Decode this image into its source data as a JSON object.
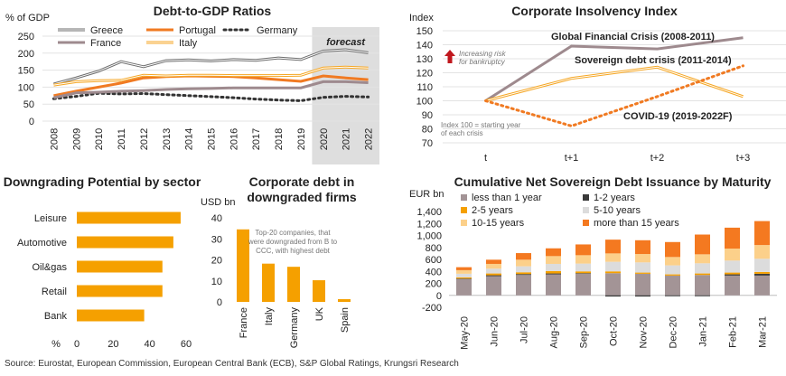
{
  "chart_data": [
    {
      "type": "line",
      "title": "Debt-to-GDP Ratios",
      "ylabel": "% of GDP",
      "xlabel": "",
      "x": [
        "2008",
        "2009",
        "2010",
        "2011",
        "2012",
        "2013",
        "2014",
        "2015",
        "2016",
        "2017",
        "2018",
        "2019",
        "2020",
        "2021",
        "2022"
      ],
      "ylim": [
        0,
        250
      ],
      "yticks": [
        0,
        50,
        100,
        150,
        200,
        250
      ],
      "shade_label": "forecast",
      "shade_from": "2020",
      "series": [
        {
          "name": "Greece",
          "color": "#6d6d6d",
          "style": "double",
          "values": [
            109,
            127,
            147,
            175,
            160,
            178,
            180,
            177,
            181,
            179,
            186,
            181,
            206,
            210,
            201
          ]
        },
        {
          "name": "Portugal",
          "color": "#f07a22",
          "style": "solid",
          "values": [
            75,
            88,
            100,
            112,
            127,
            131,
            133,
            132,
            131,
            127,
            122,
            117,
            133,
            127,
            122
          ]
        },
        {
          "name": "Germany",
          "color": "#333333",
          "style": "dotted",
          "values": [
            66,
            73,
            82,
            80,
            81,
            78,
            75,
            72,
            69,
            65,
            62,
            60,
            70,
            73,
            71
          ]
        },
        {
          "name": "France",
          "color": "#9e8a8e",
          "style": "solid",
          "values": [
            69,
            83,
            85,
            88,
            90,
            93,
            95,
            96,
            98,
            98,
            98,
            98,
            116,
            116,
            113
          ]
        },
        {
          "name": "Italy",
          "color": "#f5a623",
          "style": "double",
          "values": [
            106,
            116,
            119,
            120,
            135,
            133,
            135,
            135,
            134,
            134,
            134,
            135,
            156,
            159,
            156
          ]
        }
      ]
    },
    {
      "type": "line",
      "title": "Corporate Insolvency Index",
      "ylabel": "Index",
      "x": [
        "t",
        "t+1",
        "t+2",
        "t+3"
      ],
      "ylim": [
        70,
        150
      ],
      "yticks": [
        70,
        80,
        90,
        100,
        110,
        120,
        130,
        140,
        150
      ],
      "note_risk": [
        "Increasing risk",
        "for bankruptcy"
      ],
      "note_index": [
        "Index 100 = starting year",
        "of each crisis"
      ],
      "series": [
        {
          "name": "Global Financial Crisis (2008-2011)",
          "color": "#9e8a8e",
          "style": "solid",
          "values": [
            100,
            139,
            137,
            145
          ]
        },
        {
          "name": "Sovereign debt crisis (2011-2014)",
          "color": "#f5a623",
          "style": "double",
          "values": [
            100,
            116,
            124,
            103
          ]
        },
        {
          "name": "COVID-19 (2019-2022F)",
          "color": "#f07a22",
          "style": "dotted",
          "values": [
            100,
            82,
            103,
            125
          ]
        }
      ]
    },
    {
      "type": "bar",
      "orientation": "horizontal",
      "title": "Downgrading Potential by sector",
      "categories": [
        "Leisure",
        "Automotive",
        "Oil&gas",
        "Retail",
        "Bank"
      ],
      "values": [
        57,
        53,
        47,
        47,
        37
      ],
      "xlim": [
        0,
        60
      ],
      "xticks": [
        0,
        20,
        40,
        60
      ],
      "xunit": "%",
      "color": "#f5a000"
    },
    {
      "type": "bar",
      "title_lines": [
        "Corporate debt in",
        "downgraded firms"
      ],
      "ylabel": "USD bn",
      "categories": [
        "France",
        "Italy",
        "Germany",
        "UK",
        "Spain"
      ],
      "values": [
        34.5,
        18.2,
        16.7,
        10.3,
        1.3
      ],
      "ylim": [
        0,
        40
      ],
      "yticks": [
        0,
        10,
        20,
        30,
        40
      ],
      "note": [
        "Top-20 companies, that",
        "were downgraded from B to",
        "CCC, with highest debt"
      ],
      "color": "#f5a000"
    },
    {
      "type": "bar",
      "stacked": true,
      "title": "Cumulative Net Sovereign Debt Issuance by Maturity",
      "ylabel": "EUR bn",
      "categories": [
        "May-20",
        "Jun-20",
        "Jul-20",
        "Aug-20",
        "Sep-20",
        "Oct-20",
        "Nov-20",
        "Dec-20",
        "Jan-21",
        "Feb-21",
        "Mar-21"
      ],
      "ylim": [
        -200,
        1400
      ],
      "yticks": [
        -200,
        0,
        200,
        400,
        600,
        800,
        1000,
        1200,
        1400
      ],
      "ytick_labels": [
        "-200",
        "0",
        "200",
        "400",
        "600",
        "800",
        "1,000",
        "1,200",
        "1,400"
      ],
      "series": [
        {
          "name": "less than 1 year",
          "color": "#a39496",
          "values": [
            270,
            320,
            340,
            350,
            360,
            370,
            360,
            330,
            340,
            330,
            330
          ]
        },
        {
          "name": "1-2 years",
          "color": "#3a3a3a",
          "values": [
            10,
            15,
            15,
            15,
            10,
            -20,
            -20,
            -15,
            -15,
            20,
            30
          ]
        },
        {
          "name": "2-5 years",
          "color": "#f5a000",
          "values": [
            20,
            30,
            30,
            40,
            30,
            30,
            20,
            20,
            25,
            30,
            30
          ]
        },
        {
          "name": "5-10 years",
          "color": "#dcdcdc",
          "values": [
            60,
            80,
            100,
            120,
            130,
            160,
            170,
            150,
            170,
            200,
            220
          ]
        },
        {
          "name": "10-15 years",
          "color": "#fcd08a",
          "values": [
            60,
            80,
            110,
            130,
            140,
            140,
            140,
            140,
            150,
            200,
            230
          ]
        },
        {
          "name": "more than 15 years",
          "color": "#f47920",
          "values": [
            50,
            70,
            110,
            130,
            180,
            230,
            230,
            250,
            330,
            350,
            400
          ]
        }
      ]
    }
  ],
  "source": "Source: Eurostat, European Commission, European Central Bank (ECB), S&P Global Ratings, Krungsri Research"
}
